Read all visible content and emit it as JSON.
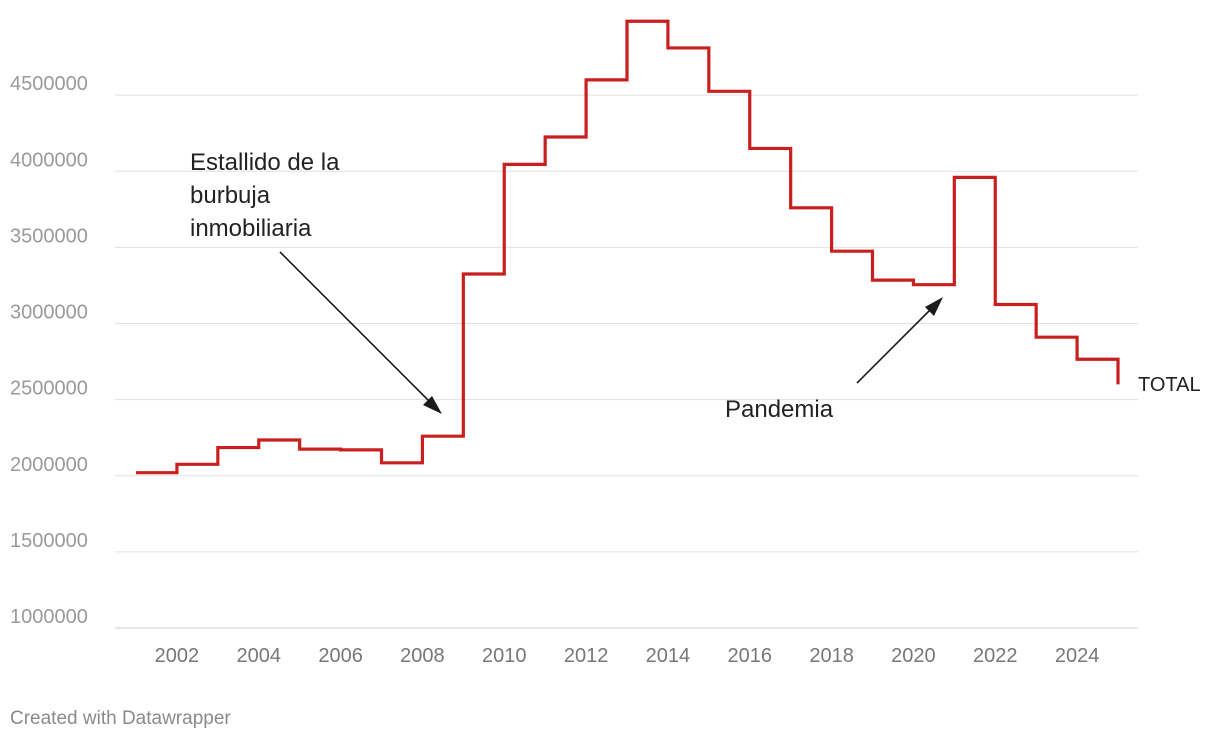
{
  "chart_data": {
    "type": "line",
    "step": "step-after",
    "title": "",
    "xlabel": "",
    "ylabel": "",
    "xlim": [
      2000.6,
      2025.5
    ],
    "ylim": [
      1000000,
      5000000
    ],
    "y_ticks": [
      1000000,
      1500000,
      2000000,
      2500000,
      3000000,
      3500000,
      4000000,
      4500000
    ],
    "x_ticks": [
      2002,
      2004,
      2006,
      2008,
      2010,
      2012,
      2014,
      2016,
      2018,
      2020,
      2022,
      2024
    ],
    "grid": true,
    "series": [
      {
        "name": "TOTAL",
        "color": "#c8201f",
        "x": [
          2001,
          2002,
          2003,
          2004,
          2005,
          2006,
          2007,
          2008,
          2009,
          2010,
          2011,
          2012,
          2013,
          2014,
          2015,
          2016,
          2017,
          2018,
          2019,
          2020,
          2021,
          2022,
          2023,
          2024,
          2025
        ],
        "values": [
          2020000,
          2075000,
          2185000,
          2235000,
          2175000,
          2170000,
          2085000,
          2260000,
          3325000,
          4045000,
          4225000,
          4600000,
          4985000,
          4810000,
          4525000,
          4150000,
          3760000,
          3475000,
          3285000,
          3255000,
          3960000,
          3125000,
          2910000,
          2765000,
          2600000
        ]
      }
    ],
    "annotations": [
      {
        "lines": [
          "Estallido de la",
          "burbuja",
          "inmobiliaria"
        ]
      },
      {
        "lines": [
          "Pandemia"
        ]
      }
    ]
  },
  "footer": "Created with Datawrapper"
}
